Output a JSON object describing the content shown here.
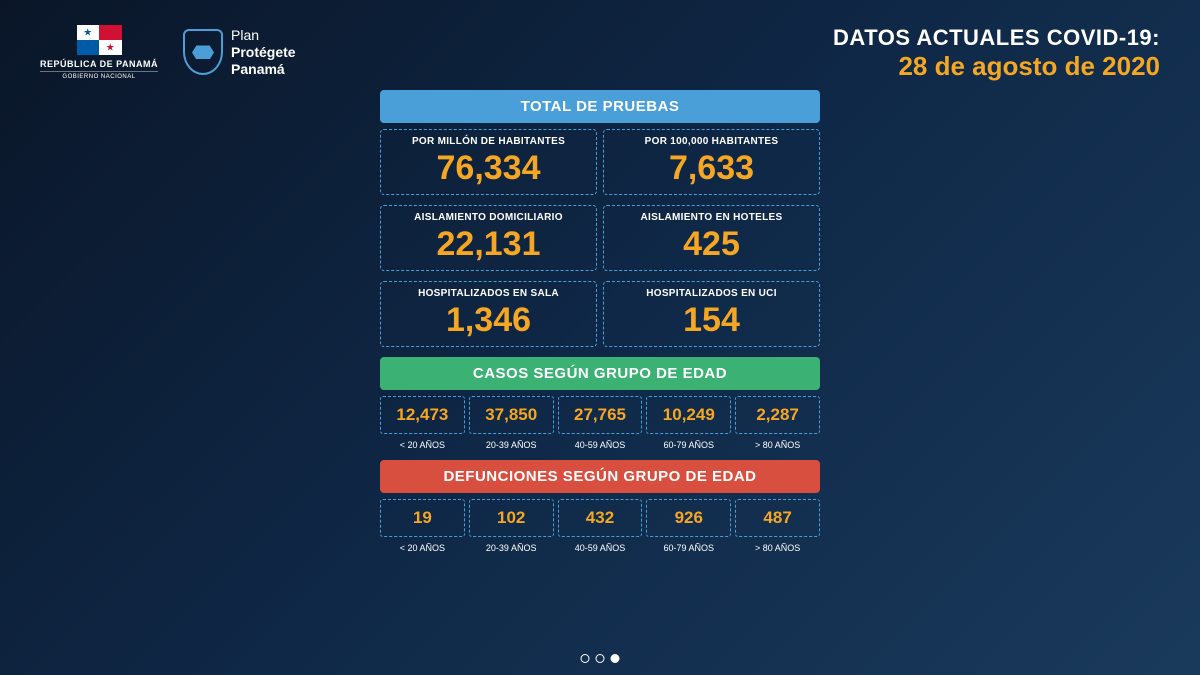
{
  "logos": {
    "panama_line1": "REPÚBLICA DE PANAMÁ",
    "panama_line2": "GOBIERNO NACIONAL",
    "plan_line1": "Plan",
    "plan_line2": "Protégete",
    "plan_line3": "Panamá"
  },
  "header": {
    "title": "DATOS ACTUALES COVID-19:",
    "date": "28 de agosto de 2020"
  },
  "tests": {
    "title": "TOTAL DE PRUEBAS",
    "per_million_label": "POR MILLÓN DE HABITANTES",
    "per_million_value": "76,334",
    "per_100k_label": "POR 100,000 HABITANTES",
    "per_100k_value": "7,633"
  },
  "isolation": {
    "home_label": "AISLAMIENTO DOMICILIARIO",
    "home_value": "22,131",
    "hotel_label": "AISLAMIENTO EN HOTELES",
    "hotel_value": "425"
  },
  "hospital": {
    "ward_label": "HOSPITALIZADOS EN SALA",
    "ward_value": "1,346",
    "icu_label": "HOSPITALIZADOS EN UCI",
    "icu_value": "154"
  },
  "cases_by_age": {
    "title": "CASOS SEGÚN GRUPO DE EDAD",
    "groups": [
      {
        "label": "< 20 AÑOS",
        "value": "12,473"
      },
      {
        "label": "20-39 AÑOS",
        "value": "37,850"
      },
      {
        "label": "40-59 AÑOS",
        "value": "27,765"
      },
      {
        "label": "60-79 AÑOS",
        "value": "10,249"
      },
      {
        "label": "> 80 AÑOS",
        "value": "2,287"
      }
    ]
  },
  "deaths_by_age": {
    "title": "DEFUNCIONES SEGÚN GRUPO DE EDAD",
    "groups": [
      {
        "label": "< 20 AÑOS",
        "value": "19"
      },
      {
        "label": "20-39 AÑOS",
        "value": "102"
      },
      {
        "label": "40-59 AÑOS",
        "value": "432"
      },
      {
        "label": "60-79 AÑOS",
        "value": "926"
      },
      {
        "label": "> 80 AÑOS",
        "value": "487"
      }
    ]
  },
  "colors": {
    "background_gradient_start": "#0a1628",
    "background_gradient_end": "#1a3a5c",
    "accent_yellow": "#f5a623",
    "band_blue": "#4a9fd8",
    "band_green": "#3bb273",
    "band_red": "#d94f3f",
    "text_white": "#ffffff",
    "border_dashed": "#4a9fd8"
  },
  "pagination": {
    "total": 3,
    "active": 3
  }
}
